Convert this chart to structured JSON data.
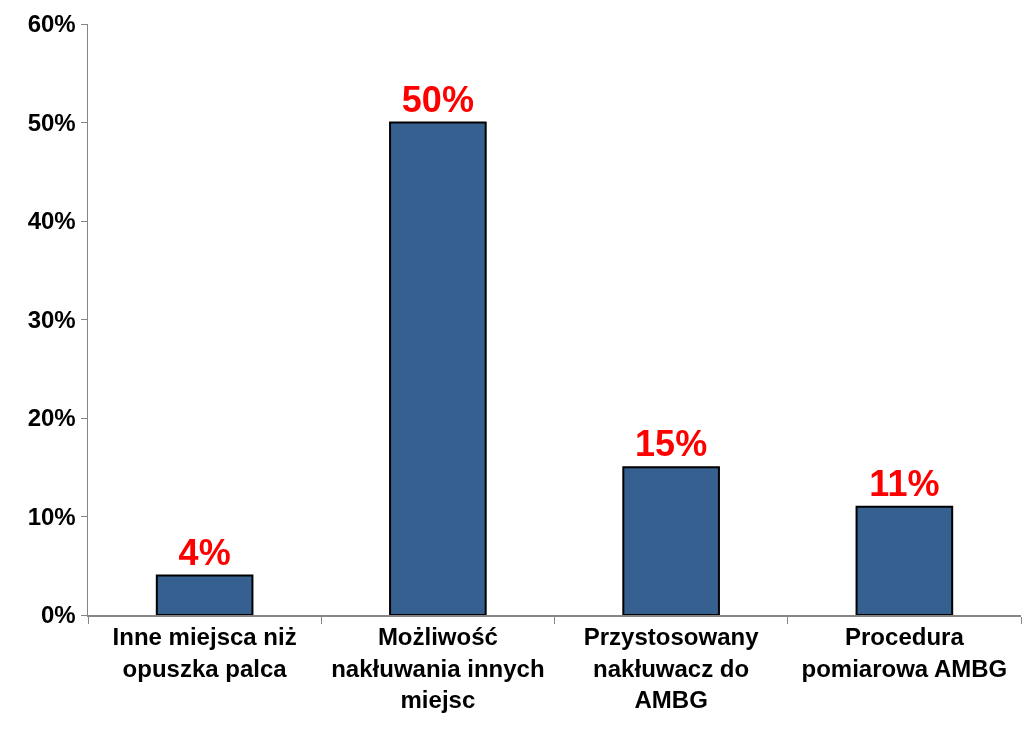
{
  "chart_data": {
    "type": "bar",
    "categories": [
      "Inne miejsca niż opuszka palca",
      "Możliwość nakłuwania innych miejsc",
      "Przystosowany nakłuwacz do AMBG",
      "Procedura pomiarowa AMBG"
    ],
    "values": [
      4,
      50,
      15,
      11
    ],
    "color": "#36608f",
    "value_labels": [
      "4%",
      "50%",
      "15%",
      "11%"
    ],
    "ylim": [
      0,
      60
    ],
    "yticks": [
      {
        "value": 0,
        "label": "0%"
      },
      {
        "value": 10,
        "label": "10%"
      },
      {
        "value": 20,
        "label": "20%"
      },
      {
        "value": 30,
        "label": "30%"
      },
      {
        "value": 40,
        "label": "40%"
      },
      {
        "value": 50,
        "label": "50%"
      },
      {
        "value": 60,
        "label": "60%"
      }
    ]
  }
}
